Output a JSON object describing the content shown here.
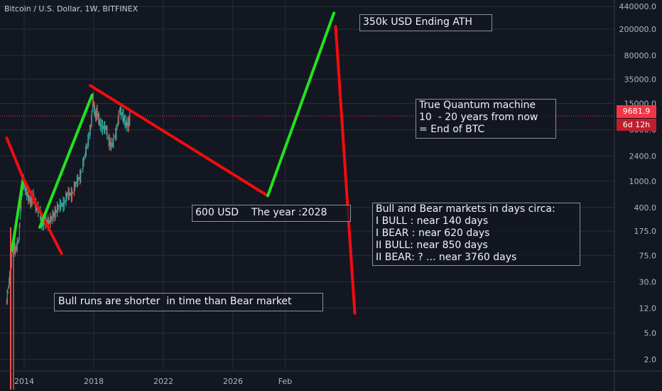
{
  "chart_data": {
    "type": "line",
    "title": "Bitcoin / U.S. Dollar, 1W, BITFINEX",
    "x_ticks": [
      "2014",
      "2018",
      "2022",
      "2026",
      "Feb"
    ],
    "y_ticks": [
      "440000.0",
      "200000.0",
      "80000.0",
      "35000.0",
      "15000.0",
      "6000.0",
      "2400.0",
      "1000.0",
      "400.0",
      "175.0",
      "75.0",
      "30.0",
      "12.0",
      "5.0",
      "2.0"
    ],
    "y_scale": "log",
    "y_range": [
      1.4,
      500000
    ],
    "current_price": "9681.9",
    "countdown": "6d 12h",
    "grid": true,
    "price_series": [
      {
        "t": 2013.0,
        "p": 15
      },
      {
        "t": 2013.2,
        "p": 40
      },
      {
        "t": 2013.35,
        "p": 100
      },
      {
        "t": 2013.5,
        "p": 90
      },
      {
        "t": 2013.7,
        "p": 130
      },
      {
        "t": 2013.85,
        "p": 600
      },
      {
        "t": 2013.95,
        "p": 1000
      },
      {
        "t": 2014.1,
        "p": 750
      },
      {
        "t": 2014.2,
        "p": 600
      },
      {
        "t": 2014.4,
        "p": 480
      },
      {
        "t": 2014.5,
        "p": 620
      },
      {
        "t": 2014.7,
        "p": 400
      },
      {
        "t": 2014.9,
        "p": 350
      },
      {
        "t": 2015.05,
        "p": 220
      },
      {
        "t": 2015.2,
        "p": 250
      },
      {
        "t": 2015.4,
        "p": 230
      },
      {
        "t": 2015.6,
        "p": 280
      },
      {
        "t": 2015.8,
        "p": 330
      },
      {
        "t": 2016.0,
        "p": 420
      },
      {
        "t": 2016.3,
        "p": 450
      },
      {
        "t": 2016.5,
        "p": 650
      },
      {
        "t": 2016.75,
        "p": 620
      },
      {
        "t": 2017.0,
        "p": 950
      },
      {
        "t": 2017.25,
        "p": 1200
      },
      {
        "t": 2017.5,
        "p": 2500
      },
      {
        "t": 2017.7,
        "p": 4300
      },
      {
        "t": 2017.85,
        "p": 7000
      },
      {
        "t": 2017.96,
        "p": 17000
      },
      {
        "t": 2018.1,
        "p": 9500
      },
      {
        "t": 2018.2,
        "p": 11000
      },
      {
        "t": 2018.35,
        "p": 7500
      },
      {
        "t": 2018.5,
        "p": 6500
      },
      {
        "t": 2018.7,
        "p": 6400
      },
      {
        "t": 2018.9,
        "p": 3800
      },
      {
        "t": 2019.05,
        "p": 3500
      },
      {
        "t": 2019.3,
        "p": 5500
      },
      {
        "t": 2019.5,
        "p": 12000
      },
      {
        "t": 2019.7,
        "p": 9500
      },
      {
        "t": 2019.85,
        "p": 7300
      },
      {
        "t": 2020.0,
        "p": 7200
      },
      {
        "t": 2020.1,
        "p": 9700
      }
    ],
    "trend_lines": [
      {
        "name": "bear-1",
        "color": "#f20c0c",
        "points": [
          {
            "t": 2013.0,
            "p": 4500
          },
          {
            "t": 2013.95,
            "p": 1100
          }
        ]
      },
      {
        "name": "bull-1",
        "color": "#22e21d",
        "points": [
          {
            "t": 2013.3,
            "p": 90
          },
          {
            "t": 2013.95,
            "p": 1100
          }
        ]
      },
      {
        "name": "bear-2",
        "color": "#f20c0c",
        "points": [
          {
            "t": 2013.95,
            "p": 1100
          },
          {
            "t": 2016.15,
            "p": 80
          }
        ]
      },
      {
        "name": "bull-2",
        "color": "#22e21d",
        "points": [
          {
            "t": 2014.9,
            "p": 200
          },
          {
            "t": 2017.9,
            "p": 20000
          }
        ]
      },
      {
        "name": "bear-3",
        "color": "#f20c0c",
        "points": [
          {
            "t": 2017.8,
            "p": 28000
          },
          {
            "t": 2028.0,
            "p": 600
          }
        ]
      },
      {
        "name": "bull-3",
        "color": "#22e21d",
        "points": [
          {
            "t": 2028.0,
            "p": 600
          },
          {
            "t": 2031.8,
            "p": 350000
          }
        ]
      },
      {
        "name": "bear-4",
        "color": "#f20c0c",
        "points": [
          {
            "t": 2031.9,
            "p": 220000
          },
          {
            "t": 2033.0,
            "p": 10
          }
        ]
      }
    ]
  },
  "annotations": {
    "n1": "600 USD    The year :2028",
    "n2": "350k USD Ending ATH",
    "n3": "True Quantum machine\n10  - 20 years from now\n= End of BTC",
    "n4": "Bull and Bear markets in days circa:\nI BULL : near 140 days\nI BEAR : near 620 days\nII BULL: near 850 days\nII BEAR: ? ... near 3760 days",
    "n5": "Bull runs are shorter  in time than Bear market"
  },
  "colors": {
    "background": "#131722",
    "grid": "#2a2e39",
    "axis_text": "#b2b5be",
    "price_line": "#f23645",
    "candles_up": "#26a69a",
    "candles_down": "#ef5350"
  }
}
